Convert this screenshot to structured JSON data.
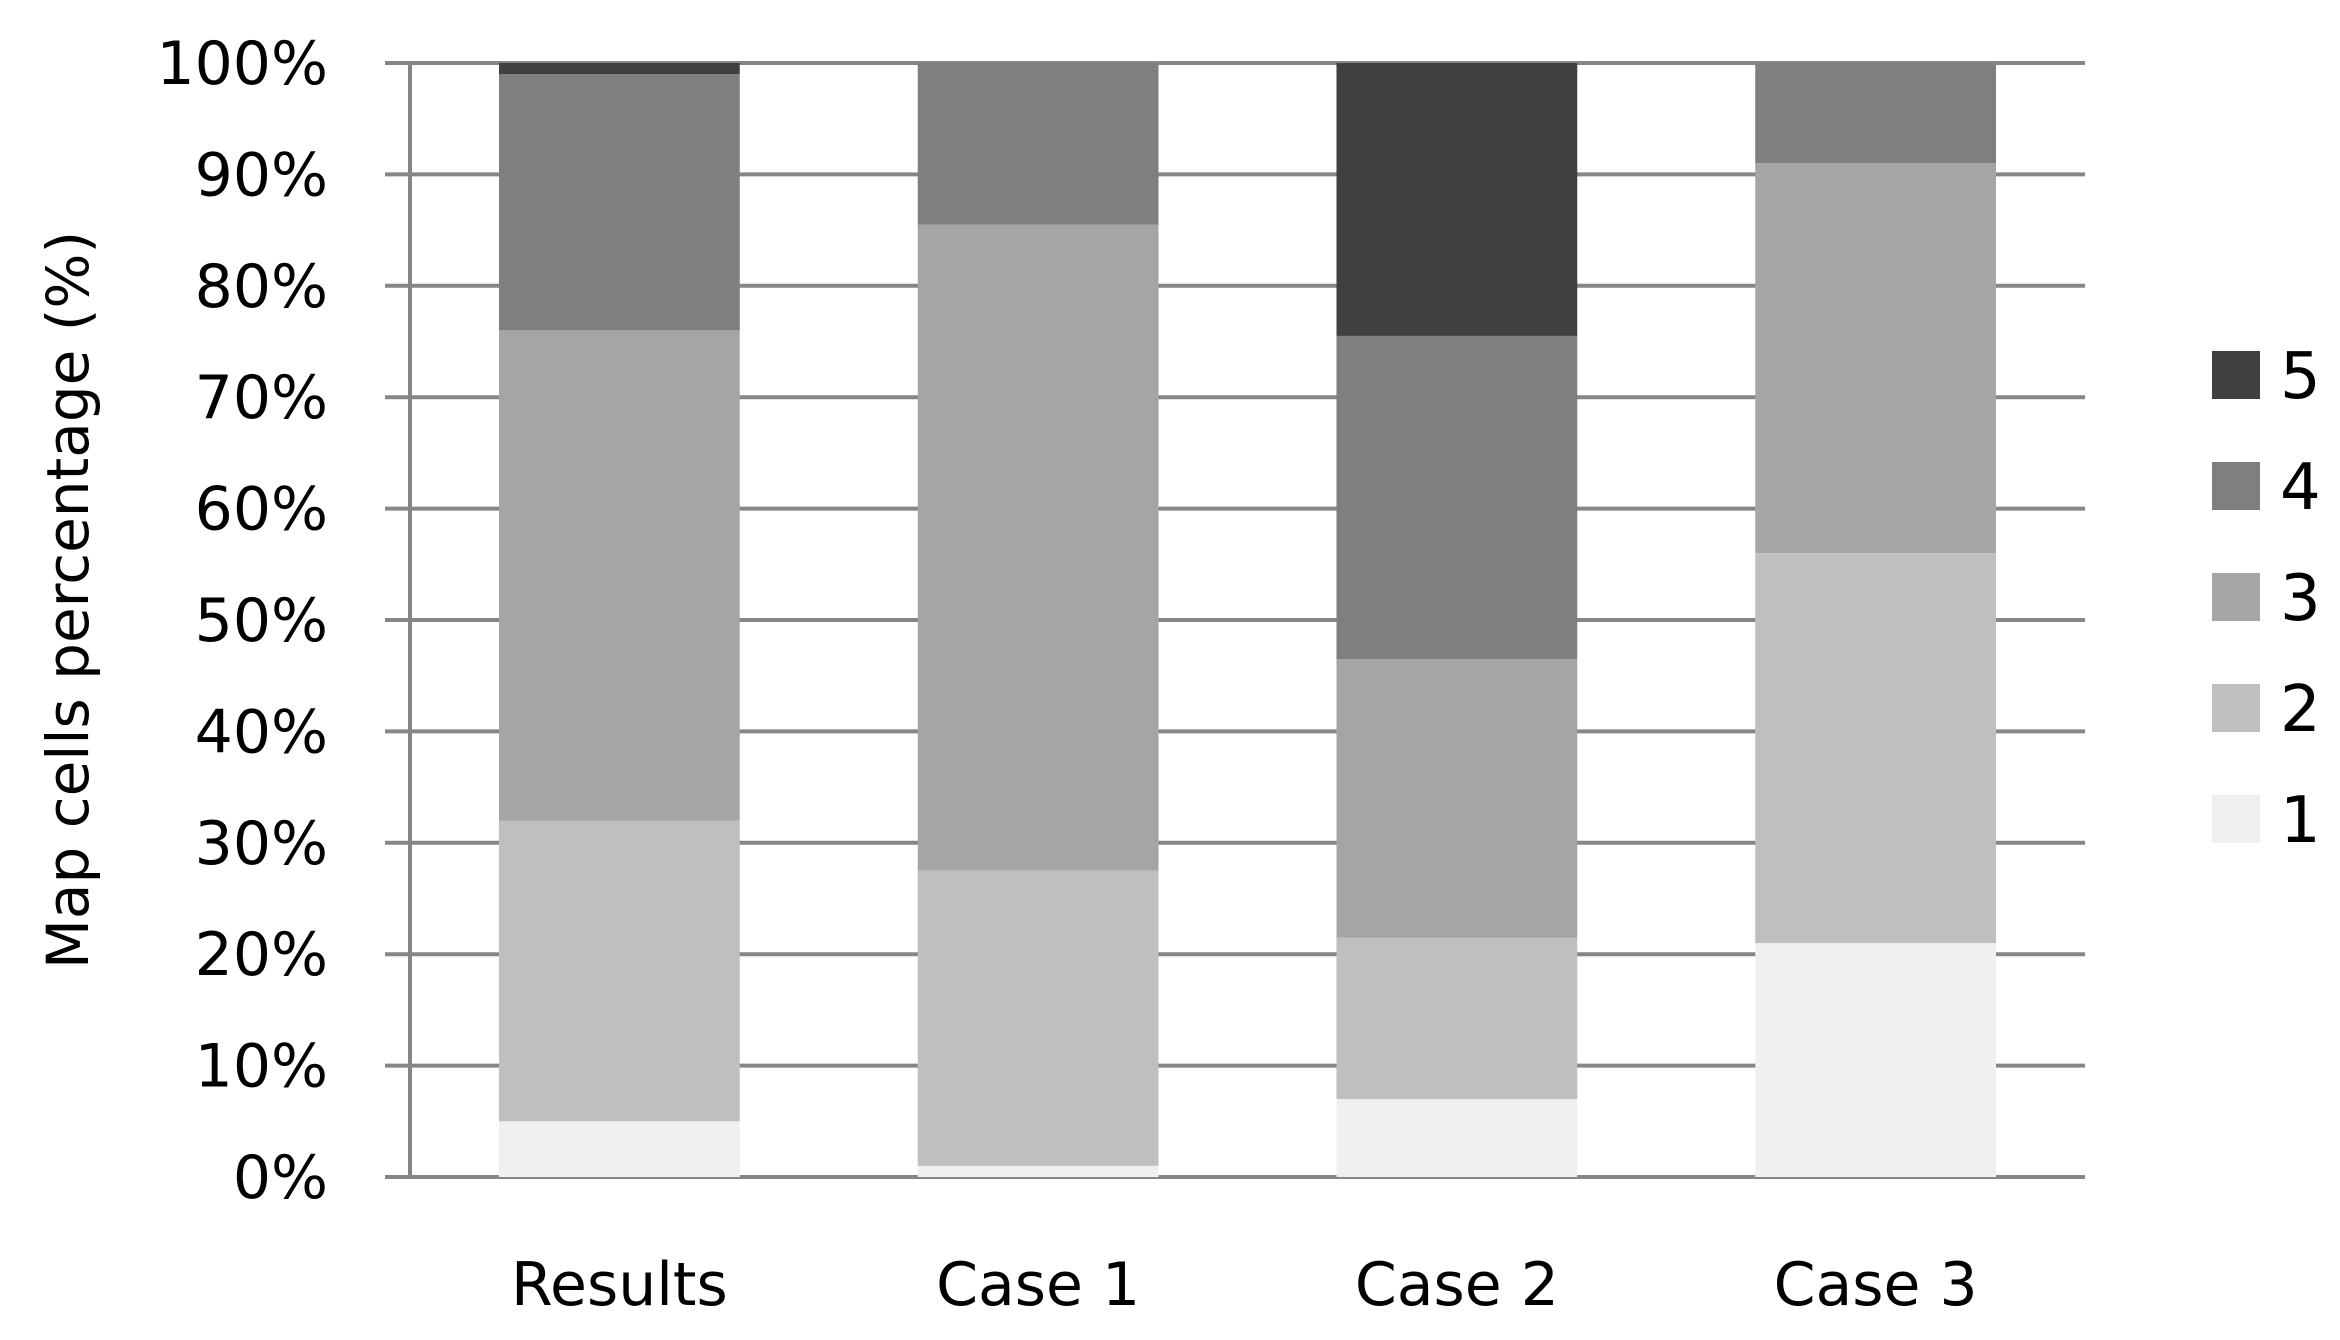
{
  "chart_data": {
    "type": "bar",
    "stacked": true,
    "percent_stacked": true,
    "title": "",
    "xlabel": "",
    "ylabel": "Map cells percentage (%)",
    "ylim": [
      0,
      100
    ],
    "yticks": [
      "0%",
      "10%",
      "20%",
      "30%",
      "40%",
      "50%",
      "60%",
      "70%",
      "80%",
      "90%",
      "100%"
    ],
    "categories": [
      "Results",
      "Case 1",
      "Case 2",
      "Case 3"
    ],
    "series": [
      {
        "name": "1",
        "color": "#f0f0f0",
        "values": [
          5,
          1,
          7,
          21
        ]
      },
      {
        "name": "2",
        "color": "#bfbfbf",
        "values": [
          27,
          26.5,
          14.5,
          35
        ]
      },
      {
        "name": "3",
        "color": "#a5a5a5",
        "values": [
          44,
          58,
          25,
          35
        ]
      },
      {
        "name": "4",
        "color": "#7f7f7f",
        "values": [
          23,
          14.5,
          29,
          9
        ]
      },
      {
        "name": "5",
        "color": "#404040",
        "values": [
          1,
          0,
          24.5,
          0
        ]
      }
    ],
    "grid": true,
    "legend_position": "right"
  }
}
